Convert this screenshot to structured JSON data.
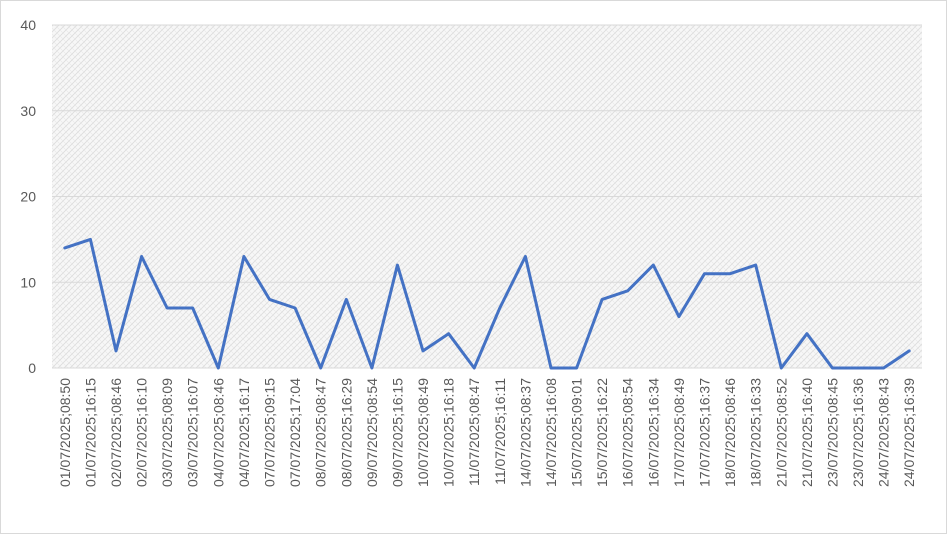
{
  "chart_data": {
    "type": "line",
    "categories": [
      "01/07/2025;08:50",
      "01/07/2025;16:15",
      "02/07/2025;08:46",
      "02/07/2025;16:10",
      "03/07/2025;08:09",
      "03/07/2025;16:07",
      "04/07/2025;08:46",
      "04/07/2025;16:17",
      "07/07/2025;09:15",
      "07/07/2025;17:04",
      "08/07/2025;08:47",
      "08/07/2025;16:29",
      "09/07/2025;08:54",
      "09/07/2025;16:15",
      "10/07/2025;08:49",
      "10/07/2025;16:18",
      "11/07/2025;08:47",
      "11/07/2025;16:11",
      "14/07/2025;08:37",
      "14/07/2025;16:08",
      "15/07/2025;09:01",
      "15/07/2025;16:22",
      "16/07/2025;08:54",
      "16/07/2025;16:34",
      "17/07/2025;08:49",
      "17/07/2025;16:37",
      "18/07/2025;08:46",
      "18/07/2025;16:33",
      "21/07/2025;08:52",
      "21/07/2025;16:40",
      "23/07/2025;08:45",
      "23/07/2025;16:36",
      "24/07/2025;08:43",
      "24/07/2025;16:39"
    ],
    "values": [
      14,
      15,
      2,
      13,
      7,
      7,
      0,
      13,
      8,
      7,
      0,
      8,
      0,
      12,
      2,
      4,
      0,
      7,
      13,
      0,
      0,
      8,
      9,
      12,
      6,
      11,
      11,
      12,
      0,
      4,
      0,
      0,
      0,
      2
    ],
    "color": "#4472c4",
    "ylim": [
      0,
      40
    ],
    "yticks": [
      0,
      10,
      20,
      30,
      40
    ],
    "grid": true
  }
}
